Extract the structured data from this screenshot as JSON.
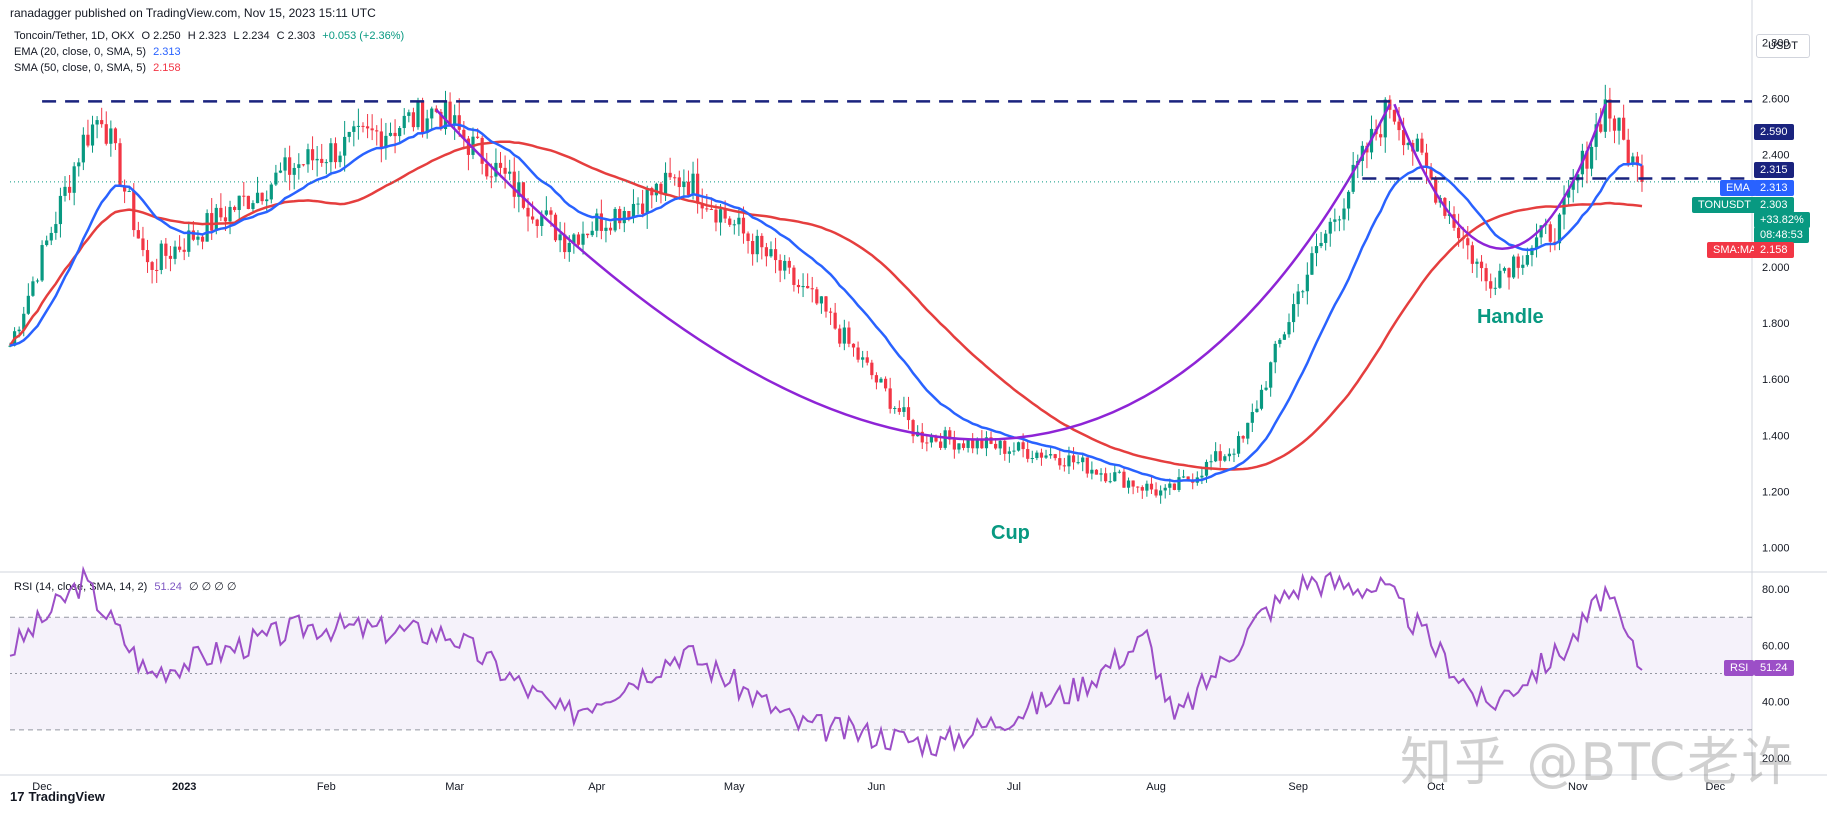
{
  "header": {
    "published_line": "ranadagger published on TradingView.com, Nov 15, 2023 15:11 UTC",
    "symbol_line": "Toncoin/Tether, 1D, OKX",
    "ohlc": {
      "o": "O 2.250",
      "h": "H 2.323",
      "l": "L 2.234",
      "c": "C 2.303",
      "chg": "+0.053 (+2.36%)"
    },
    "ema_label": "EMA (20, close, 0, SMA, 5)",
    "ema_value": "2.313",
    "sma_label": "SMA (50, close, 0, SMA, 5)",
    "sma_value": "2.158",
    "rsi_label": "RSI (14, close, SMA, 14, 2)",
    "rsi_value": "51.24",
    "rsi_extra": "∅ ∅ ∅ ∅"
  },
  "price_axis": {
    "currency": "USDT",
    "ticks": [
      "2.800",
      "2.600",
      "2.400",
      "2.200",
      "2.000",
      "1.800",
      "1.600",
      "1.400",
      "1.200",
      "1.000"
    ],
    "tick_values": [
      2.8,
      2.6,
      2.4,
      2.2,
      2.0,
      1.8,
      1.6,
      1.4,
      1.2,
      1.0
    ]
  },
  "tags": {
    "resistance": "2.590",
    "neckline": "2.315",
    "ema_name": "EMA",
    "ema": "2.313",
    "symbol": "TONUSDT",
    "price": "2.303",
    "change": "+33.82%",
    "countdown": "08:48:53",
    "sma_name": "SMA:MA",
    "sma": "2.158",
    "rsi_name": "RSI",
    "rsi": "51.24"
  },
  "rsi_axis": {
    "ticks": [
      "80.00",
      "60.00",
      "40.00",
      "20.00"
    ],
    "tick_values": [
      80,
      60,
      40,
      20
    ]
  },
  "time_axis": [
    "Dec",
    "2023",
    "Feb",
    "Mar",
    "Apr",
    "May",
    "Jun",
    "Jul",
    "Aug",
    "Sep",
    "Oct",
    "Nov",
    "Dec"
  ],
  "annotations": {
    "cup": "Cup",
    "handle": "Handle"
  },
  "footer": {
    "brand": "TradingView",
    "watermark": "知乎 @BTC老许"
  },
  "colors": {
    "up": "#089981",
    "down": "#f23645",
    "ema": "#2962ff",
    "sma": "#e53e3e",
    "cup": "#8e24d6",
    "rsi": "#9c4fc7",
    "level": "#1a237e"
  },
  "chart_data": {
    "type": "candlestick",
    "title": "Toncoin/Tether, 1D, OKX",
    "ylim": [
      0.92,
      2.88
    ],
    "key_levels": {
      "resistance": 2.59,
      "neckline": 2.315
    },
    "overlays": [
      "EMA (20, close, 0, SMA, 5)",
      "SMA (50, close, 0, SMA, 5)"
    ],
    "price_keypoints": [
      {
        "t": "2022-11-24",
        "close": 1.72
      },
      {
        "t": "2022-12-10",
        "close": 2.45
      },
      {
        "t": "2022-12-14",
        "close": 2.55
      },
      {
        "t": "2022-12-24",
        "close": 2.0
      },
      {
        "t": "2023-01-25",
        "close": 2.36
      },
      {
        "t": "2023-02-25",
        "close": 2.56
      },
      {
        "t": "2023-03-25",
        "close": 2.1
      },
      {
        "t": "2023-04-20",
        "close": 2.32
      },
      {
        "t": "2023-05-20",
        "close": 1.85
      },
      {
        "t": "2023-06-10",
        "close": 1.4
      },
      {
        "t": "2023-07-10",
        "close": 1.33
      },
      {
        "t": "2023-08-03",
        "close": 1.19
      },
      {
        "t": "2023-08-20",
        "close": 1.38
      },
      {
        "t": "2023-09-02",
        "close": 1.95
      },
      {
        "t": "2023-09-21",
        "close": 2.58
      },
      {
        "t": "2023-10-12",
        "close": 1.95
      },
      {
        "t": "2023-10-28",
        "close": 2.15
      },
      {
        "t": "2023-11-07",
        "close": 2.58
      },
      {
        "t": "2023-11-15",
        "close": 2.303
      }
    ],
    "rsi": {
      "ylim": [
        20,
        85
      ],
      "bands": [
        30,
        50,
        70
      ],
      "keypoints": [
        {
          "t": "2022-11-24",
          "v": 58
        },
        {
          "t": "2022-12-10",
          "v": 83
        },
        {
          "t": "2022-12-24",
          "v": 50
        },
        {
          "t": "2023-01-28",
          "v": 67
        },
        {
          "t": "2023-02-28",
          "v": 64
        },
        {
          "t": "2023-03-25",
          "v": 35
        },
        {
          "t": "2023-04-20",
          "v": 58
        },
        {
          "t": "2023-05-15",
          "v": 32
        },
        {
          "t": "2023-06-15",
          "v": 25
        },
        {
          "t": "2023-07-15",
          "v": 45
        },
        {
          "t": "2023-07-30",
          "v": 63
        },
        {
          "t": "2023-08-05",
          "v": 33
        },
        {
          "t": "2023-08-24",
          "v": 71
        },
        {
          "t": "2023-09-03",
          "v": 83
        },
        {
          "t": "2023-09-20",
          "v": 80
        },
        {
          "t": "2023-10-12",
          "v": 38
        },
        {
          "t": "2023-10-30",
          "v": 60
        },
        {
          "t": "2023-11-07",
          "v": 79
        },
        {
          "t": "2023-11-15",
          "v": 51.24
        }
      ]
    }
  }
}
